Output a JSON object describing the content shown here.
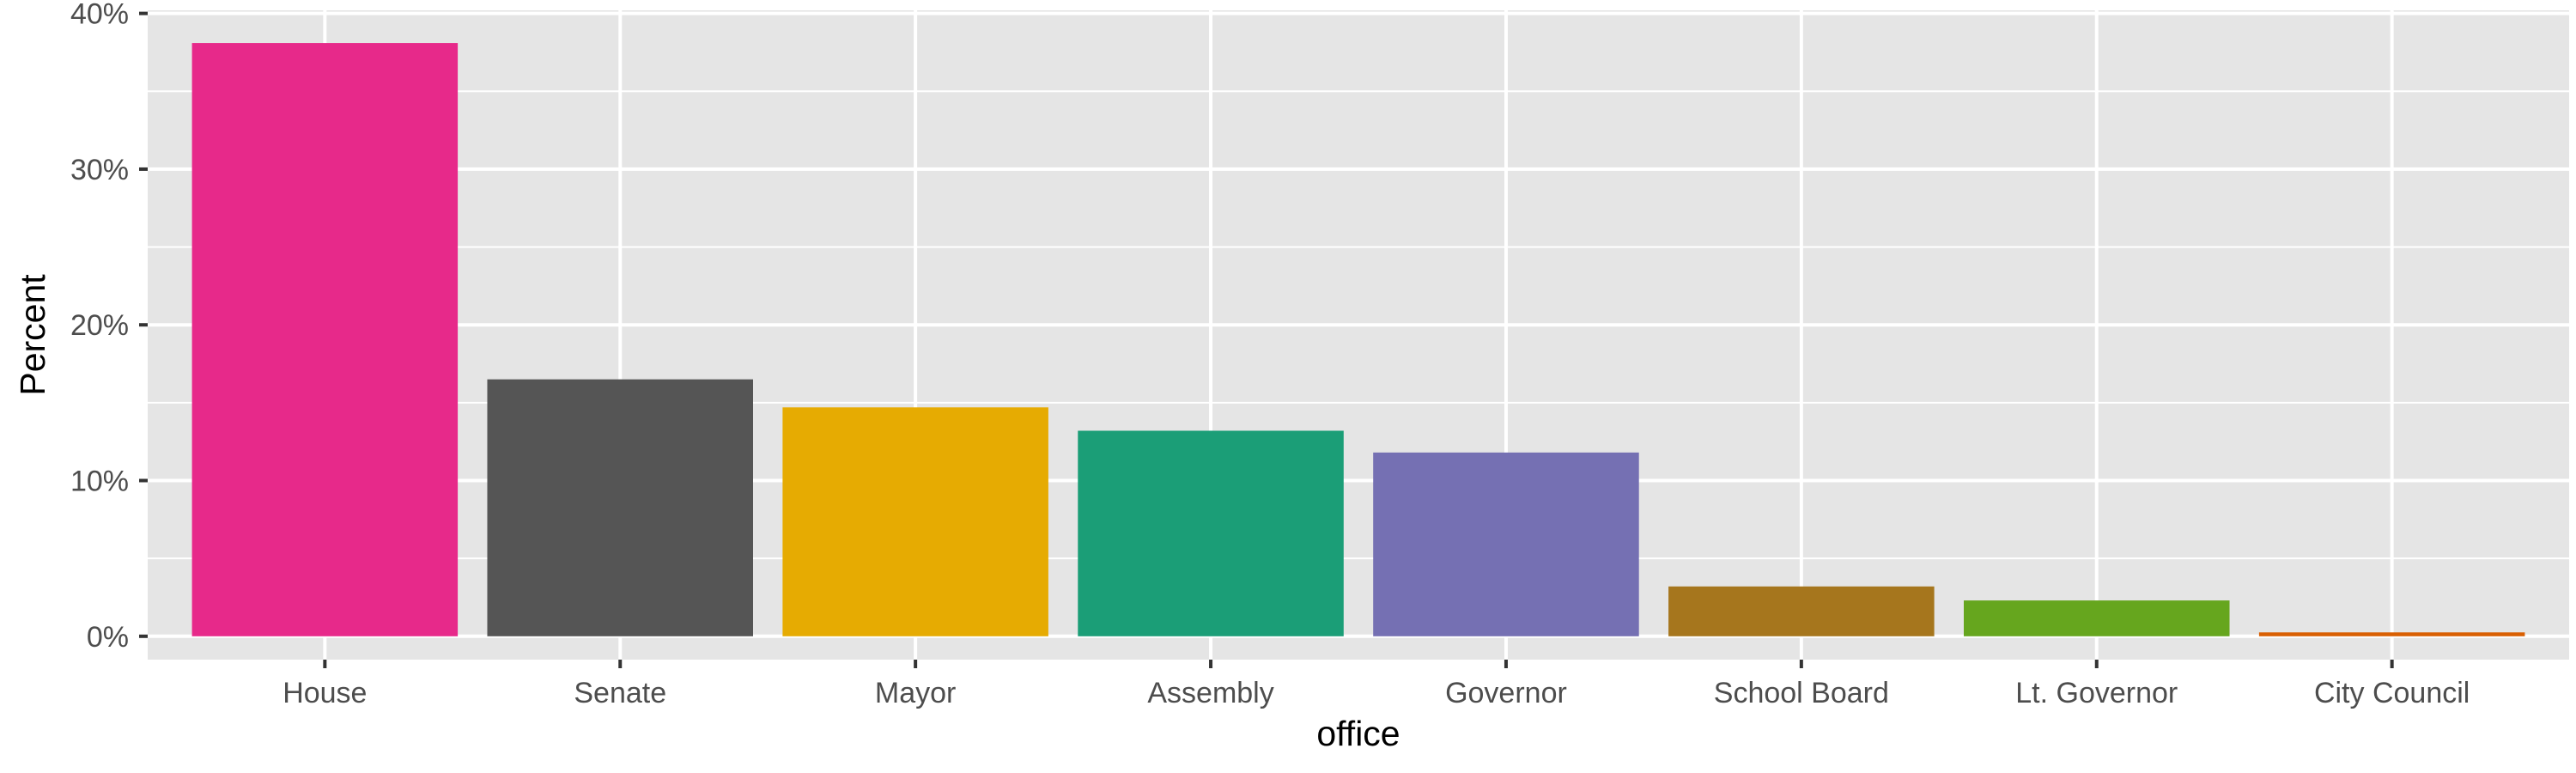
{
  "chart_data": {
    "type": "bar",
    "title": "",
    "xlabel": "office",
    "ylabel": "Percent",
    "categories": [
      "House",
      "Senate",
      "Mayor",
      "Assembly",
      "Governor",
      "School Board",
      "Lt. Governor",
      "City Council"
    ],
    "values": [
      38.1,
      16.5,
      14.7,
      13.2,
      11.8,
      3.2,
      2.3,
      0.25
    ],
    "colors": [
      "#E7298A",
      "#555555",
      "#E6AB02",
      "#1B9E77",
      "#7570B3",
      "#A6761D",
      "#66A61E",
      "#D95F02"
    ],
    "ylim": [
      -1.5,
      40.2
    ],
    "yticks": [
      0,
      10,
      20,
      30,
      40
    ],
    "ytick_labels": [
      "0%",
      "10%",
      "20%",
      "30%",
      "40%"
    ],
    "y_unit": "percent",
    "grid": true,
    "legend": "none",
    "panel_background": "#E5E5E5",
    "gridline_color": "#FFFFFF"
  }
}
